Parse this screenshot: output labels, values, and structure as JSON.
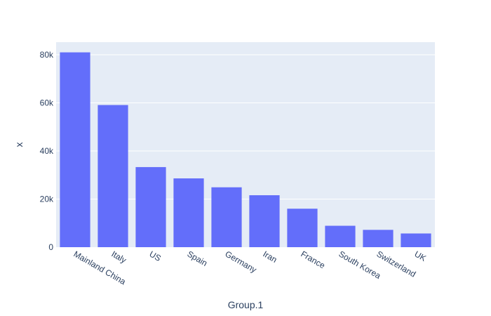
{
  "chart_data": {
    "type": "bar",
    "title": "",
    "xlabel": "Group.1",
    "ylabel": "x",
    "categories": [
      "Mainland China",
      "Italy",
      "US",
      "Spain",
      "Germany",
      "Iran",
      "France",
      "South Korea",
      "Switzerland",
      "UK"
    ],
    "values": [
      81000,
      59100,
      33300,
      28600,
      24900,
      21600,
      16000,
      8900,
      7200,
      5700
    ],
    "ylim": [
      0,
      85250
    ],
    "yticks": [
      0,
      20000,
      40000,
      60000,
      80000
    ],
    "ytick_labels": [
      "0",
      "20k",
      "40k",
      "60k",
      "80k"
    ],
    "grid": true,
    "legend": "none",
    "colors": {
      "bar": "#636efa",
      "plot_bg": "#e5ecf6",
      "grid": "#ffffff",
      "text": "#2a3f5f"
    }
  }
}
